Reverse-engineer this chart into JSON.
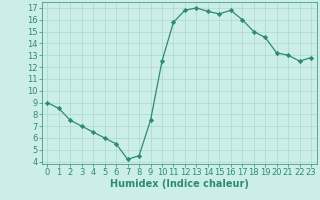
{
  "x": [
    0,
    1,
    2,
    3,
    4,
    5,
    6,
    7,
    8,
    9,
    10,
    11,
    12,
    13,
    14,
    15,
    16,
    17,
    18,
    19,
    20,
    21,
    22,
    23
  ],
  "y": [
    9.0,
    8.5,
    7.5,
    7.0,
    6.5,
    6.0,
    5.5,
    4.2,
    4.5,
    7.5,
    12.5,
    15.8,
    16.8,
    17.0,
    16.7,
    16.5,
    16.8,
    16.0,
    15.0,
    14.5,
    13.2,
    13.0,
    12.5,
    12.8
  ],
  "xlabel": "Humidex (Indice chaleur)",
  "xlim": [
    -0.5,
    23.5
  ],
  "ylim": [
    3.8,
    17.5
  ],
  "yticks": [
    4,
    5,
    6,
    7,
    8,
    9,
    10,
    11,
    12,
    13,
    14,
    15,
    16,
    17
  ],
  "xticks": [
    0,
    1,
    2,
    3,
    4,
    5,
    6,
    7,
    8,
    9,
    10,
    11,
    12,
    13,
    14,
    15,
    16,
    17,
    18,
    19,
    20,
    21,
    22,
    23
  ],
  "line_color": "#2e8b72",
  "bg_color": "#cceee8",
  "grid_color": "#aad8d0",
  "text_color": "#2e8b72",
  "font_size_label": 7,
  "font_size_tick": 6,
  "marker": "D",
  "markersize": 2.2,
  "linewidth": 0.9
}
